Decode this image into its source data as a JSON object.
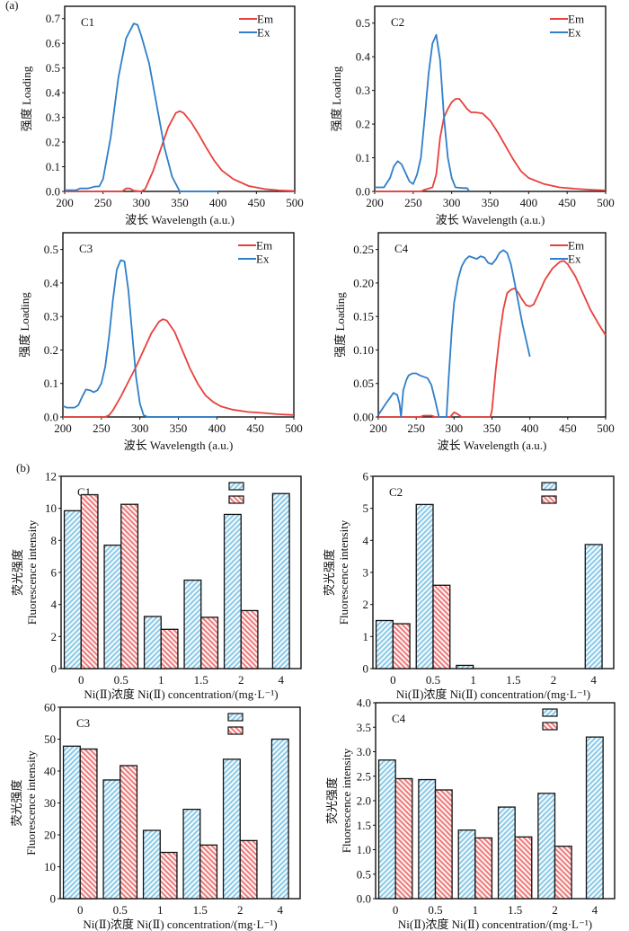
{
  "panels": {
    "a_label": "(a)",
    "b_label": "(b)"
  },
  "colors": {
    "em": "#e8403c",
    "ex": "#2f7fc9",
    "bar_blue": "#8ecbe8",
    "bar_red": "#ee7f7f"
  },
  "chart_data": [
    {
      "id": "a-C1",
      "type": "line",
      "title": "C1",
      "xlabel": "波长 Wavelength (a.u.)",
      "ylabel": "强度 Loading",
      "xlim": [
        200,
        500
      ],
      "ylim": [
        0,
        0.75
      ],
      "xticks": [
        "200",
        "250",
        "300",
        "350",
        "400",
        "450",
        "500"
      ],
      "yticks": [
        "0.0",
        "0.1",
        "0.2",
        "0.3",
        "0.4",
        "0.5",
        "0.6",
        "0.7"
      ],
      "ytick_values": [
        0,
        0.1,
        0.2,
        0.3,
        0.4,
        0.5,
        0.6,
        0.7
      ],
      "legend": [
        "Em",
        "Ex"
      ],
      "legend_position": "top-right",
      "series": [
        {
          "name": "Em",
          "x": [
            200,
            275,
            280,
            285,
            290,
            300,
            305,
            315,
            325,
            335,
            345,
            350,
            355,
            365,
            375,
            385,
            395,
            405,
            420,
            440,
            460,
            480,
            500
          ],
          "y": [
            0,
            0,
            0.012,
            0.012,
            0.003,
            0,
            0.01,
            0.08,
            0.17,
            0.26,
            0.318,
            0.325,
            0.318,
            0.28,
            0.23,
            0.175,
            0.125,
            0.085,
            0.05,
            0.022,
            0.01,
            0.004,
            0.002
          ]
        },
        {
          "name": "Ex",
          "x": [
            200,
            215,
            220,
            230,
            240,
            245,
            250,
            260,
            270,
            280,
            290,
            295,
            300,
            310,
            320,
            330,
            340,
            350,
            400
          ],
          "y": [
            0.005,
            0.005,
            0.012,
            0.012,
            0.02,
            0.02,
            0.05,
            0.22,
            0.46,
            0.62,
            0.68,
            0.675,
            0.63,
            0.52,
            0.35,
            0.18,
            0.06,
            0,
            0
          ]
        }
      ]
    },
    {
      "id": "a-C2",
      "type": "line",
      "title": "C2",
      "xlabel": "波长 Wavelength (a.u.)",
      "ylabel": "强度 Loading",
      "xlim": [
        200,
        500
      ],
      "ylim": [
        0,
        0.55
      ],
      "xticks": [
        "200",
        "250",
        "300",
        "350",
        "400",
        "450",
        "500"
      ],
      "yticks": [
        "0.0",
        "0.1",
        "0.2",
        "0.3",
        "0.4",
        "0.5"
      ],
      "ytick_values": [
        0,
        0.1,
        0.2,
        0.3,
        0.4,
        0.5
      ],
      "legend": [
        "Em",
        "Ex"
      ],
      "legend_position": "top-right",
      "series": [
        {
          "name": "Em",
          "x": [
            200,
            260,
            265,
            275,
            280,
            285,
            290,
            295,
            300,
            305,
            310,
            315,
            320,
            325,
            330,
            340,
            350,
            360,
            370,
            380,
            390,
            400,
            420,
            440,
            460,
            480,
            500
          ],
          "y": [
            0,
            0,
            0.005,
            0.012,
            0.05,
            0.16,
            0.22,
            0.245,
            0.265,
            0.275,
            0.275,
            0.26,
            0.245,
            0.235,
            0.235,
            0.232,
            0.21,
            0.175,
            0.135,
            0.095,
            0.06,
            0.04,
            0.022,
            0.012,
            0.008,
            0.005,
            0.003
          ]
        },
        {
          "name": "Ex",
          "x": [
            200,
            212,
            220,
            225,
            230,
            235,
            240,
            245,
            250,
            255,
            260,
            265,
            270,
            275,
            280,
            285,
            290,
            295,
            300,
            305,
            315,
            320,
            323
          ],
          "y": [
            0.012,
            0.012,
            0.04,
            0.075,
            0.09,
            0.08,
            0.055,
            0.03,
            0.022,
            0.05,
            0.1,
            0.22,
            0.35,
            0.44,
            0.465,
            0.39,
            0.22,
            0.1,
            0.04,
            0.012,
            0.01,
            0.01,
            0
          ]
        }
      ]
    },
    {
      "id": "a-C3",
      "type": "line",
      "title": "C3",
      "xlabel": "波长 Wavelength (a.u.)",
      "ylabel": "强度 Loading",
      "xlim": [
        200,
        500
      ],
      "ylim": [
        0,
        0.55
      ],
      "xticks": [
        "200",
        "250",
        "300",
        "350",
        "400",
        "450",
        "500"
      ],
      "yticks": [
        "0.0",
        "0.1",
        "0.2",
        "0.3",
        "0.4",
        "0.5"
      ],
      "ytick_values": [
        0,
        0.1,
        0.2,
        0.3,
        0.4,
        0.5
      ],
      "legend": [
        "Em",
        "Ex"
      ],
      "legend_position": "top-right",
      "series": [
        {
          "name": "Em",
          "x": [
            200,
            255,
            260,
            265,
            275,
            285,
            295,
            305,
            315,
            325,
            330,
            335,
            345,
            355,
            365,
            375,
            385,
            395,
            405,
            420,
            440,
            460,
            480,
            500
          ],
          "y": [
            0,
            0,
            0.005,
            0.02,
            0.06,
            0.105,
            0.15,
            0.2,
            0.25,
            0.285,
            0.292,
            0.288,
            0.255,
            0.2,
            0.145,
            0.1,
            0.065,
            0.045,
            0.032,
            0.022,
            0.015,
            0.012,
            0.008,
            0.006
          ]
        },
        {
          "name": "Ex",
          "x": [
            200,
            205,
            215,
            220,
            225,
            230,
            235,
            240,
            245,
            250,
            255,
            260,
            265,
            270,
            275,
            280,
            285,
            290,
            295,
            300,
            305,
            310,
            400
          ],
          "y": [
            0.033,
            0.028,
            0.028,
            0.035,
            0.06,
            0.082,
            0.08,
            0.074,
            0.08,
            0.1,
            0.15,
            0.24,
            0.35,
            0.44,
            0.468,
            0.465,
            0.38,
            0.25,
            0.12,
            0.04,
            0.005,
            0,
            0
          ]
        }
      ]
    },
    {
      "id": "a-C4",
      "type": "line",
      "title": "C4",
      "xlabel": "波长 Wavelength (a.u.)",
      "ylabel": "强度 Loading",
      "xlim": [
        200,
        500
      ],
      "ylim": [
        0,
        0.275
      ],
      "xticks": [
        "200",
        "250",
        "300",
        "350",
        "400",
        "450",
        "500"
      ],
      "yticks": [
        "0.00",
        "0.05",
        "0.10",
        "0.15",
        "0.20",
        "0.25"
      ],
      "ytick_values": [
        0,
        0.05,
        0.1,
        0.15,
        0.2,
        0.25
      ],
      "legend": [
        "Em",
        "Ex"
      ],
      "legend_position": "top-right",
      "series": [
        {
          "name": "Em",
          "x": [
            200,
            255,
            260,
            265,
            270,
            275,
            295,
            300,
            305,
            310,
            348,
            350,
            355,
            360,
            365,
            370,
            375,
            380,
            385,
            390,
            395,
            400,
            405,
            410,
            420,
            430,
            440,
            445,
            450,
            460,
            470,
            480,
            490,
            500
          ],
          "y": [
            0,
            0,
            0.002,
            0.002,
            0.002,
            0,
            0,
            0.007,
            0.004,
            0,
            0,
            0.01,
            0.07,
            0.12,
            0.16,
            0.185,
            0.19,
            0.192,
            0.185,
            0.175,
            0.167,
            0.165,
            0.168,
            0.18,
            0.205,
            0.222,
            0.232,
            0.233,
            0.228,
            0.21,
            0.185,
            0.16,
            0.14,
            0.122
          ]
        },
        {
          "name": "Ex",
          "x": [
            200,
            210,
            220,
            225,
            228,
            230,
            233,
            237,
            240,
            245,
            250,
            255,
            260,
            265,
            270,
            275,
            280,
            290,
            293,
            297,
            300,
            305,
            310,
            315,
            320,
            325,
            330,
            335,
            340,
            345,
            350,
            355,
            360,
            365,
            370,
            375,
            380,
            385,
            390,
            395,
            400
          ],
          "y": [
            0.003,
            0.02,
            0.036,
            0.033,
            0.02,
            0,
            0.04,
            0.055,
            0.062,
            0.065,
            0.065,
            0.062,
            0.06,
            0.058,
            0.048,
            0.025,
            0,
            0,
            0.06,
            0.13,
            0.17,
            0.205,
            0.225,
            0.235,
            0.24,
            0.238,
            0.236,
            0.24,
            0.238,
            0.23,
            0.228,
            0.235,
            0.245,
            0.249,
            0.245,
            0.228,
            0.2,
            0.17,
            0.14,
            0.115,
            0.09
          ]
        }
      ]
    },
    {
      "id": "b-C1",
      "type": "bar",
      "title": "C1",
      "xlabel": "Ni(Ⅱ)浓度 Ni(Ⅱ) concentration/(mg·L⁻¹)",
      "ylabel_cn": "荧光强度",
      "ylabel_en": "Fluorescence intensity",
      "categories": [
        "0",
        "0.5",
        "1",
        "1.5",
        "2",
        "4"
      ],
      "ylim": [
        0,
        12
      ],
      "yticks": [
        "0",
        "2",
        "4",
        "6",
        "8",
        "10",
        "12"
      ],
      "ytick_values": [
        0,
        2,
        4,
        6,
        8,
        10,
        12
      ],
      "legend_position": "top-right",
      "series": [
        {
          "name": "blue-hatched",
          "values": [
            9.85,
            7.7,
            3.25,
            5.52,
            9.62,
            10.92
          ]
        },
        {
          "name": "red-hatched",
          "values": [
            10.85,
            10.25,
            2.45,
            3.2,
            3.62,
            null
          ]
        }
      ]
    },
    {
      "id": "b-C2",
      "type": "bar",
      "title": "C2",
      "xlabel": "Ni(Ⅱ)浓度 Ni(Ⅱ) concentration/(mg·L⁻¹)",
      "ylabel_cn": "荧光强度",
      "ylabel_en": "Fluorescence intensity",
      "categories": [
        "0",
        "0.5",
        "1",
        "1.5",
        "2",
        "4"
      ],
      "ylim": [
        0,
        6
      ],
      "yticks": [
        "0",
        "1",
        "2",
        "3",
        "4",
        "5",
        "6"
      ],
      "ytick_values": [
        0,
        1,
        2,
        3,
        4,
        5,
        6
      ],
      "legend_position": "top-right",
      "series": [
        {
          "name": "blue-hatched",
          "values": [
            1.5,
            5.12,
            0.1,
            null,
            null,
            3.87
          ]
        },
        {
          "name": "red-hatched",
          "values": [
            1.4,
            2.6,
            null,
            null,
            null,
            null
          ]
        }
      ]
    },
    {
      "id": "b-C3",
      "type": "bar",
      "title": "C3",
      "xlabel": "Ni(Ⅱ)浓度 Ni(Ⅱ) concentration/(mg·L⁻¹)",
      "ylabel_cn": "荧光强度",
      "ylabel_en": "Fluorescence intensity",
      "categories": [
        "0",
        "0.5",
        "1",
        "1.5",
        "2",
        "4"
      ],
      "ylim": [
        0,
        60
      ],
      "yticks": [
        "0",
        "10",
        "20",
        "30",
        "40",
        "50",
        "60"
      ],
      "ytick_values": [
        0,
        10,
        20,
        30,
        40,
        50,
        60
      ],
      "legend_position": "top-right",
      "series": [
        {
          "name": "blue-hatched",
          "values": [
            47.8,
            37.2,
            21.4,
            28.0,
            43.7,
            50.0
          ]
        },
        {
          "name": "red-hatched",
          "values": [
            46.9,
            41.7,
            14.5,
            16.8,
            18.2,
            null
          ]
        }
      ]
    },
    {
      "id": "b-C4",
      "type": "bar",
      "title": "C4",
      "xlabel": "Ni(Ⅱ)浓度 Ni(Ⅱ) concentration/(mg·L⁻¹)",
      "ylabel_cn": "荧光强度",
      "ylabel_en": "Fluorescence intensity",
      "categories": [
        "0",
        "0.5",
        "1",
        "1.5",
        "2",
        "4"
      ],
      "ylim": [
        0,
        4.0
      ],
      "yticks": [
        "0.0",
        "0.5",
        "1.0",
        "1.5",
        "2.0",
        "2.5",
        "3.0",
        "3.5",
        "4.0"
      ],
      "ytick_values": [
        0,
        0.5,
        1,
        1.5,
        2,
        2.5,
        3,
        3.5,
        4
      ],
      "legend_position": "top-right",
      "series": [
        {
          "name": "blue-hatched",
          "values": [
            2.83,
            2.43,
            1.4,
            1.87,
            2.15,
            3.3
          ]
        },
        {
          "name": "red-hatched",
          "values": [
            2.45,
            2.22,
            1.24,
            1.26,
            1.07,
            null
          ]
        }
      ]
    }
  ]
}
